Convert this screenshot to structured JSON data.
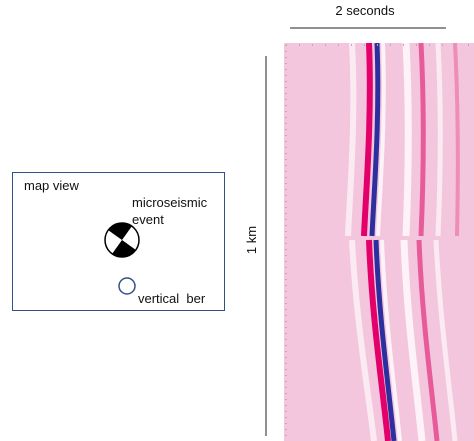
{
  "scale_bar": {
    "time_label": "2 seconds",
    "distance_label": "1 km"
  },
  "map": {
    "title": "map view",
    "event_label_line1": "microseismic",
    "event_label_line2": "event",
    "fiber_label": "vertical  ber"
  }
}
